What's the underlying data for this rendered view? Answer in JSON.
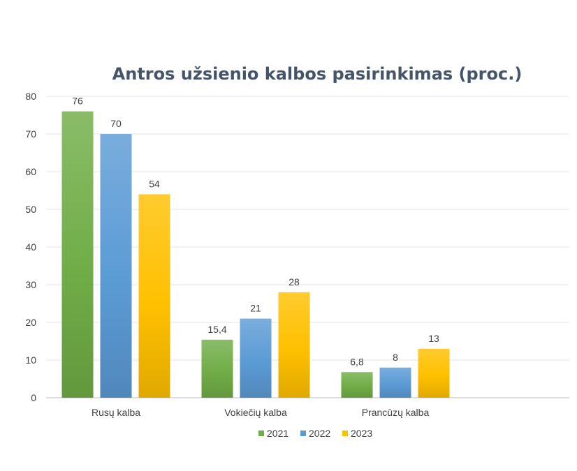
{
  "chart_data": {
    "type": "bar",
    "title": "Antros užsienio kalbos pasirinkimas (proc.)",
    "xlabel": "",
    "ylabel": "",
    "categories": [
      "Rusų kalba",
      "Vokiečių kalba",
      "Prancūzų kalba"
    ],
    "series": [
      {
        "name": "2021",
        "values": [
          76,
          15.4,
          6.8
        ],
        "labels": [
          "76",
          "15,4",
          "6,8"
        ],
        "color": "#70ad47"
      },
      {
        "name": "2022",
        "values": [
          70,
          21,
          8
        ],
        "labels": [
          "70",
          "21",
          "8"
        ],
        "color": "#5b9bd5"
      },
      {
        "name": "2023",
        "values": [
          54,
          28,
          13
        ],
        "labels": [
          "54",
          "28",
          "13"
        ],
        "color": "#ffc000"
      }
    ],
    "ylim": [
      0,
      80
    ],
    "yticks": [
      "0",
      "10",
      "20",
      "30",
      "40",
      "50",
      "60",
      "70",
      "80"
    ],
    "grid": true,
    "legend_position": "bottom"
  }
}
